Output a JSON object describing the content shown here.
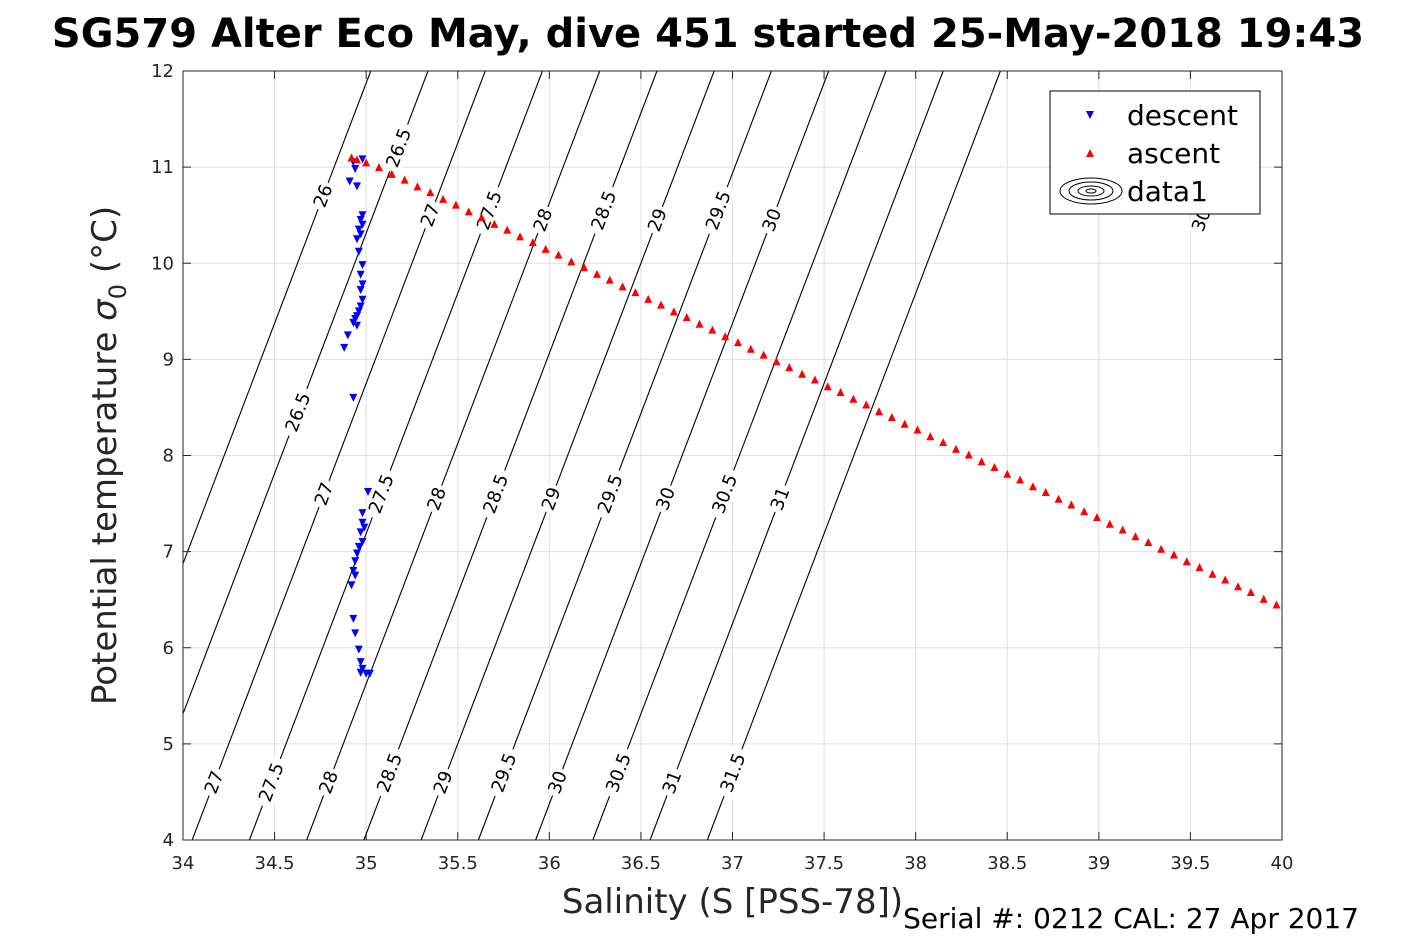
{
  "title": "SG579 Alter Eco May, dive 451 started 25-May-2018 19:43",
  "footer": "Serial #: 0212  CAL: 27 Apr 2017",
  "chart_data": {
    "type": "scatter",
    "xlabel": "Salinity (S [PSS-78])",
    "ylabel_main": "Potential temperature ",
    "ylabel_symbol": "σ",
    "ylabel_subscript": "0",
    "ylabel_unit": " (°C)",
    "xlim": [
      34,
      40
    ],
    "ylim": [
      4,
      12
    ],
    "xticks": [
      "34",
      "34.5",
      "35",
      "35.5",
      "36",
      "36.5",
      "37",
      "37.5",
      "38",
      "38.5",
      "39",
      "39.5",
      "40"
    ],
    "yticks": [
      "4",
      "5",
      "6",
      "7",
      "8",
      "9",
      "10",
      "11",
      "12"
    ],
    "grid": true,
    "legend_position": "top-right",
    "legend": [
      "descent",
      "ascent",
      "data1"
    ],
    "series": [
      {
        "name": "descent",
        "marker": "triangle-down",
        "color": "#0000ff",
        "points": [
          [
            34.98,
            11.08
          ],
          [
            34.93,
            11.05
          ],
          [
            34.94,
            10.98
          ],
          [
            34.91,
            10.85
          ],
          [
            34.95,
            10.8
          ],
          [
            34.98,
            10.5
          ],
          [
            34.97,
            10.45
          ],
          [
            34.98,
            10.4
          ],
          [
            34.96,
            10.35
          ],
          [
            34.97,
            10.3
          ],
          [
            34.95,
            10.25
          ],
          [
            34.96,
            10.12
          ],
          [
            34.98,
            9.98
          ],
          [
            34.97,
            9.88
          ],
          [
            34.98,
            9.78
          ],
          [
            34.97,
            9.72
          ],
          [
            34.98,
            9.62
          ],
          [
            34.97,
            9.55
          ],
          [
            34.96,
            9.5
          ],
          [
            34.95,
            9.45
          ],
          [
            34.94,
            9.42
          ],
          [
            34.93,
            9.38
          ],
          [
            34.95,
            9.35
          ],
          [
            34.9,
            9.25
          ],
          [
            34.88,
            9.12
          ],
          [
            34.93,
            8.6
          ],
          [
            35.01,
            7.62
          ],
          [
            34.98,
            7.4
          ],
          [
            34.98,
            7.3
          ],
          [
            34.99,
            7.25
          ],
          [
            34.97,
            7.2
          ],
          [
            34.98,
            7.1
          ],
          [
            34.96,
            7.05
          ],
          [
            34.95,
            6.98
          ],
          [
            34.94,
            6.9
          ],
          [
            34.93,
            6.8
          ],
          [
            34.94,
            6.75
          ],
          [
            34.92,
            6.65
          ],
          [
            34.93,
            6.3
          ],
          [
            34.94,
            6.15
          ],
          [
            34.96,
            5.98
          ],
          [
            34.97,
            5.85
          ],
          [
            34.98,
            5.78
          ],
          [
            34.97,
            5.74
          ],
          [
            35.0,
            5.73
          ],
          [
            35.02,
            5.73
          ]
        ]
      },
      {
        "name": "ascent",
        "marker": "triangle-up",
        "color": "#ff0000",
        "points": [
          [
            34.92,
            11.1
          ],
          [
            34.95,
            11.08
          ],
          [
            35.0,
            11.05
          ],
          [
            35.07,
            11.0
          ],
          [
            35.14,
            10.93
          ],
          [
            35.21,
            10.87
          ],
          [
            35.28,
            10.8
          ],
          [
            35.35,
            10.74
          ],
          [
            35.42,
            10.67
          ],
          [
            35.49,
            10.61
          ],
          [
            35.56,
            10.54
          ],
          [
            35.63,
            10.48
          ],
          [
            35.7,
            10.41
          ],
          [
            35.77,
            10.35
          ],
          [
            35.84,
            10.28
          ],
          [
            35.91,
            10.22
          ],
          [
            35.98,
            10.15
          ],
          [
            36.05,
            10.09
          ],
          [
            36.12,
            10.02
          ],
          [
            36.19,
            9.96
          ],
          [
            36.26,
            9.89
          ],
          [
            36.33,
            9.83
          ],
          [
            36.4,
            9.76
          ],
          [
            36.47,
            9.7
          ],
          [
            36.54,
            9.63
          ],
          [
            36.61,
            9.57
          ],
          [
            36.68,
            9.5
          ],
          [
            36.75,
            9.44
          ],
          [
            36.82,
            9.37
          ],
          [
            36.89,
            9.31
          ],
          [
            36.96,
            9.24
          ],
          [
            37.03,
            9.18
          ],
          [
            37.1,
            9.11
          ],
          [
            37.17,
            9.05
          ],
          [
            37.24,
            8.98
          ],
          [
            37.31,
            8.92
          ],
          [
            37.38,
            8.85
          ],
          [
            37.45,
            8.79
          ],
          [
            37.52,
            8.72
          ],
          [
            37.59,
            8.66
          ],
          [
            37.66,
            8.59
          ],
          [
            37.73,
            8.53
          ],
          [
            37.8,
            8.46
          ],
          [
            37.87,
            8.4
          ],
          [
            37.94,
            8.33
          ],
          [
            38.01,
            8.27
          ],
          [
            38.08,
            8.2
          ],
          [
            38.15,
            8.14
          ],
          [
            38.22,
            8.07
          ],
          [
            38.29,
            8.01
          ],
          [
            38.36,
            7.94
          ],
          [
            38.43,
            7.88
          ],
          [
            38.5,
            7.81
          ],
          [
            38.57,
            7.75
          ],
          [
            38.64,
            7.68
          ],
          [
            38.71,
            7.62
          ],
          [
            38.78,
            7.55
          ],
          [
            38.85,
            7.49
          ],
          [
            38.92,
            7.42
          ],
          [
            38.99,
            7.36
          ],
          [
            39.06,
            7.29
          ],
          [
            39.13,
            7.23
          ],
          [
            39.2,
            7.16
          ],
          [
            39.27,
            7.1
          ],
          [
            39.34,
            7.03
          ],
          [
            39.41,
            6.97
          ],
          [
            39.48,
            6.9
          ],
          [
            39.55,
            6.84
          ],
          [
            39.62,
            6.77
          ],
          [
            39.69,
            6.71
          ],
          [
            39.76,
            6.64
          ],
          [
            39.83,
            6.58
          ],
          [
            39.9,
            6.51
          ],
          [
            39.97,
            6.45
          ]
        ]
      }
    ],
    "contours": [
      {
        "sigma": 26,
        "labels": [
          {
            "text": "26",
            "t": 10.7
          }
        ]
      },
      {
        "sigma": 26.5,
        "labels": [
          {
            "text": "26.5",
            "t": 11.2
          },
          {
            "text": "26.5",
            "t": 8.45
          }
        ]
      },
      {
        "sigma": 27,
        "labels": [
          {
            "text": "27",
            "t": 10.5
          },
          {
            "text": "27",
            "t": 7.6
          },
          {
            "text": "27",
            "t": 4.6
          }
        ]
      },
      {
        "sigma": 27.5,
        "labels": [
          {
            "text": "27.5",
            "t": 10.55
          },
          {
            "text": "27.5",
            "t": 7.6
          },
          {
            "text": "27.5",
            "t": 4.6
          }
        ]
      },
      {
        "sigma": 28,
        "labels": [
          {
            "text": "28",
            "t": 10.45
          },
          {
            "text": "28",
            "t": 7.55
          },
          {
            "text": "28",
            "t": 4.6
          }
        ]
      },
      {
        "sigma": 28.5,
        "labels": [
          {
            "text": "28.5",
            "t": 10.55
          },
          {
            "text": "28.5",
            "t": 7.6
          },
          {
            "text": "28.5",
            "t": 4.7
          }
        ]
      },
      {
        "sigma": 29,
        "labels": [
          {
            "text": "29",
            "t": 10.45
          },
          {
            "text": "29",
            "t": 7.55
          },
          {
            "text": "29",
            "t": 4.6
          }
        ]
      },
      {
        "sigma": 29.5,
        "labels": [
          {
            "text": "29.5",
            "t": 10.55
          },
          {
            "text": "29.5",
            "t": 7.6
          },
          {
            "text": "29.5",
            "t": 4.7
          }
        ]
      },
      {
        "sigma": 30,
        "labels": [
          {
            "text": "30",
            "t": 10.45
          },
          {
            "text": "30",
            "t": 7.55
          },
          {
            "text": "30",
            "t": 4.6
          }
        ]
      },
      {
        "sigma": 30.5,
        "labels": [
          {
            "text": "30.5",
            "t": 7.6
          },
          {
            "text": "30.5",
            "t": 4.7
          }
        ]
      },
      {
        "sigma": 31,
        "labels": [
          {
            "text": "31",
            "t": 7.55
          },
          {
            "text": "31",
            "t": 4.6
          }
        ]
      },
      {
        "sigma": 31.5,
        "labels": [
          {
            "text": "31.5",
            "t": 4.7
          }
        ]
      }
    ],
    "partial_contour_labels": [
      {
        "text": "30",
        "s": 39.56,
        "t": 10.45
      }
    ]
  }
}
